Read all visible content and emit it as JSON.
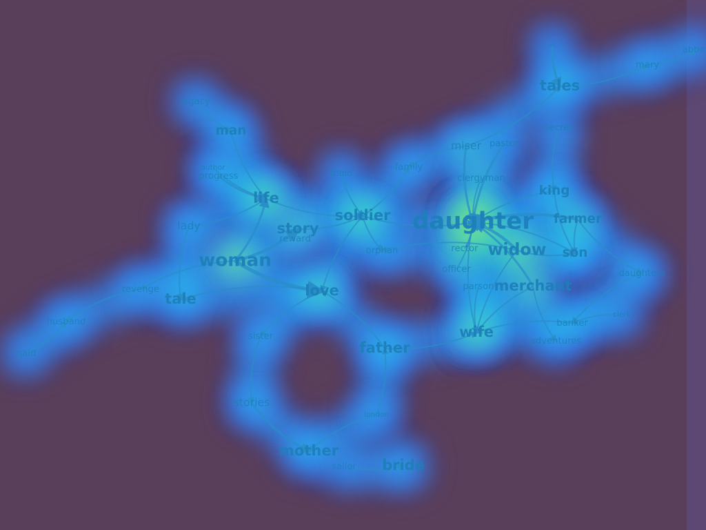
{
  "diagram": {
    "kind": "word co-occurrence network with heatmap",
    "colors": {
      "background": "#5a3f5b",
      "glow_outer": "#3a5cf0",
      "glow_mid": "#27d0e8",
      "glow_hot": "#c8f22a",
      "edge": "#2a8ec8",
      "label": "#1d7fb8"
    },
    "nodes": [
      {
        "id": "daughter",
        "label": "daughter",
        "weight": 10,
        "heat": 1.0
      },
      {
        "id": "woman",
        "label": "woman",
        "weight": 7,
        "heat": 0.8
      },
      {
        "id": "widow",
        "label": "widow",
        "weight": 6,
        "heat": 0.85
      },
      {
        "id": "soldier",
        "label": "soldier",
        "weight": 5,
        "heat": 0.7
      },
      {
        "id": "merchant",
        "label": "merchant",
        "weight": 5,
        "heat": 0.7
      },
      {
        "id": "wife",
        "label": "wife",
        "weight": 5,
        "heat": 0.75
      },
      {
        "id": "love",
        "label": "love",
        "weight": 5,
        "heat": 0.6
      },
      {
        "id": "story",
        "label": "story",
        "weight": 5,
        "heat": 0.6
      },
      {
        "id": "life",
        "label": "life",
        "weight": 5,
        "heat": 0.75
      },
      {
        "id": "tales",
        "label": "tales",
        "weight": 5,
        "heat": 0.55
      },
      {
        "id": "farmer",
        "label": "farmer",
        "weight": 4,
        "heat": 0.6
      },
      {
        "id": "king",
        "label": "king",
        "weight": 4,
        "heat": 0.55
      },
      {
        "id": "son",
        "label": "son",
        "weight": 4,
        "heat": 0.5
      },
      {
        "id": "tale",
        "label": "tale",
        "weight": 5,
        "heat": 0.5
      },
      {
        "id": "man",
        "label": "man",
        "weight": 4,
        "heat": 0.45
      },
      {
        "id": "father",
        "label": "father",
        "weight": 5,
        "heat": 0.55
      },
      {
        "id": "mother",
        "label": "mother",
        "weight": 5,
        "heat": 0.5
      },
      {
        "id": "bride",
        "label": "bride",
        "weight": 5,
        "heat": 0.4
      },
      {
        "id": "stories",
        "label": "stories",
        "weight": 3,
        "heat": 0.45
      },
      {
        "id": "sister",
        "label": "sister",
        "weight": 2,
        "heat": 0.4
      },
      {
        "id": "lady",
        "label": "lady",
        "weight": 3,
        "heat": 0.4
      },
      {
        "id": "revenge",
        "label": "revenge",
        "weight": 2,
        "heat": 0.4
      },
      {
        "id": "husband",
        "label": "husband",
        "weight": 2,
        "heat": 0.4
      },
      {
        "id": "maid",
        "label": "maid",
        "weight": 2,
        "heat": 0.35
      },
      {
        "id": "legacy",
        "label": "legacy",
        "weight": 2,
        "heat": 0.4
      },
      {
        "id": "author",
        "label": "author",
        "weight": 1,
        "heat": 0.4
      },
      {
        "id": "progress",
        "label": "progress",
        "weight": 2,
        "heat": 0.5
      },
      {
        "id": "reward",
        "label": "reward",
        "weight": 2,
        "heat": 0.5
      },
      {
        "id": "maid2",
        "label": "maid",
        "weight": 2,
        "heat": 0.4
      },
      {
        "id": "family",
        "label": "family",
        "weight": 2,
        "heat": 0.5
      },
      {
        "id": "orphan",
        "label": "orphan",
        "weight": 2,
        "heat": 0.5
      },
      {
        "id": "miser",
        "label": "miser",
        "weight": 3,
        "heat": 0.6
      },
      {
        "id": "pastor",
        "label": "pastor",
        "weight": 2,
        "heat": 0.5
      },
      {
        "id": "secret",
        "label": "secret",
        "weight": 2,
        "heat": 0.45
      },
      {
        "id": "clergyman",
        "label": "clergyman",
        "weight": 2,
        "heat": 0.7
      },
      {
        "id": "rector",
        "label": "rector",
        "weight": 2,
        "heat": 0.8
      },
      {
        "id": "officer",
        "label": "officer",
        "weight": 2,
        "heat": 0.6
      },
      {
        "id": "parson",
        "label": "parson",
        "weight": 2,
        "heat": 0.55
      },
      {
        "id": "banker",
        "label": "banker",
        "weight": 2,
        "heat": 0.5
      },
      {
        "id": "clerk",
        "label": "clerk",
        "weight": 1,
        "heat": 0.4
      },
      {
        "id": "adventures",
        "label": "adventures",
        "weight": 2,
        "heat": 0.45
      },
      {
        "id": "daughters",
        "label": "daughters",
        "weight": 2,
        "heat": 0.45
      },
      {
        "id": "mary",
        "label": "mary",
        "weight": 2,
        "heat": 0.4
      },
      {
        "id": "abbey",
        "label": "abbey",
        "weight": 2,
        "heat": 0.4
      },
      {
        "id": "tales_top",
        "label": "—",
        "weight": 1,
        "heat": 0.4
      },
      {
        "id": "sailor",
        "label": "sailor",
        "weight": 2,
        "heat": 0.35
      },
      {
        "id": "london",
        "label": "london",
        "weight": 1,
        "heat": 0.4
      }
    ],
    "edges": [
      [
        "legacy",
        "man",
        1
      ],
      [
        "man",
        "life",
        1
      ],
      [
        "author",
        "life",
        1
      ],
      [
        "progress",
        "life",
        2
      ],
      [
        "lady",
        "life",
        1
      ],
      [
        "lady",
        "tale",
        1
      ],
      [
        "life",
        "soldier",
        1
      ],
      [
        "woman",
        "life",
        2
      ],
      [
        "woman",
        "story",
        3
      ],
      [
        "woman",
        "love",
        4
      ],
      [
        "woman",
        "revenge",
        1
      ],
      [
        "revenge",
        "husband",
        1
      ],
      [
        "maid",
        "husband",
        1
      ],
      [
        "story",
        "soldier",
        1
      ],
      [
        "maid2",
        "soldier",
        1
      ],
      [
        "soldier",
        "family",
        1
      ],
      [
        "soldier",
        "orphan",
        1
      ],
      [
        "soldier",
        "daughter",
        1
      ],
      [
        "soldier",
        "love",
        1
      ],
      [
        "love",
        "tale",
        1
      ],
      [
        "love",
        "sister",
        1
      ],
      [
        "sister",
        "stories",
        1
      ],
      [
        "stories",
        "mother",
        2
      ],
      [
        "london",
        "mother",
        1
      ],
      [
        "london",
        "father",
        1
      ],
      [
        "father",
        "wife",
        1
      ],
      [
        "father",
        "love",
        1
      ],
      [
        "sailor",
        "bride",
        1
      ],
      [
        "miser",
        "family",
        1
      ],
      [
        "miser",
        "daughter",
        2
      ],
      [
        "pastor",
        "daughter",
        2
      ],
      [
        "miser",
        "tales",
        1
      ],
      [
        "secret",
        "king",
        1
      ],
      [
        "king",
        "daughter",
        1
      ],
      [
        "farmer",
        "daughter",
        3
      ],
      [
        "farmer",
        "son",
        1
      ],
      [
        "farmer",
        "daughters",
        1
      ],
      [
        "daughters",
        "banker",
        1
      ],
      [
        "banker",
        "wife",
        1
      ],
      [
        "clerk",
        "banker",
        1
      ],
      [
        "merchant",
        "daughter",
        2
      ],
      [
        "merchant",
        "wife",
        1
      ],
      [
        "merchant",
        "adventures",
        1
      ],
      [
        "widow",
        "daughter",
        3
      ],
      [
        "widow",
        "son",
        1
      ],
      [
        "widow",
        "orphan",
        1
      ],
      [
        "rector",
        "daughter",
        1
      ],
      [
        "officer",
        "daughter",
        1
      ],
      [
        "parson",
        "wife",
        1
      ],
      [
        "daughter",
        "wife",
        1
      ],
      [
        "clergyman",
        "daughter",
        1
      ],
      [
        "tales_top",
        "tales",
        2
      ],
      [
        "tales",
        "mary",
        1
      ],
      [
        "mary",
        "abbey",
        1
      ],
      [
        "son",
        "daughter",
        1
      ],
      [
        "king",
        "son",
        1
      ],
      [
        "widow",
        "wife",
        1
      ]
    ]
  }
}
